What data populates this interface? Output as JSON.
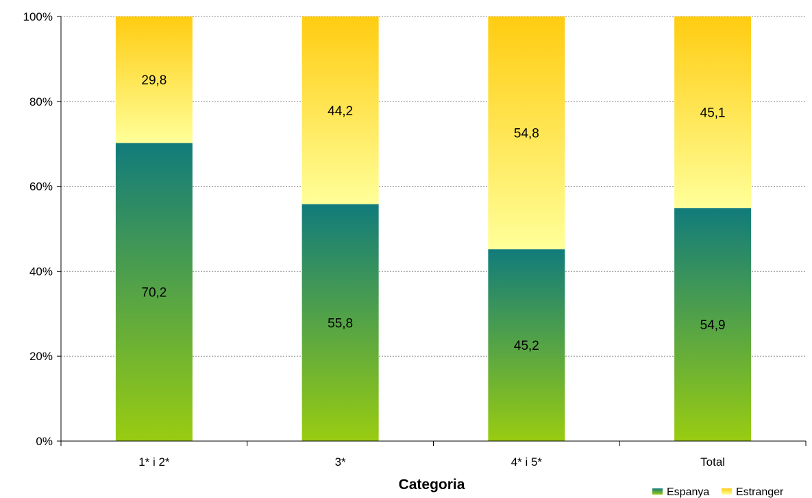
{
  "chart_data": {
    "type": "bar",
    "stacked": true,
    "percent_stacked": true,
    "categories": [
      "1* i 2*",
      "3*",
      "4* i 5*",
      "Total"
    ],
    "series": [
      {
        "name": "Espanya",
        "values": [
          70.2,
          55.8,
          45.2,
          54.9
        ],
        "labels": [
          "70,2",
          "55,8",
          "45,2",
          "54,9"
        ]
      },
      {
        "name": "Estranger",
        "values": [
          29.8,
          44.2,
          54.8,
          45.1
        ],
        "labels": [
          "29,8",
          "44,2",
          "54,8",
          "45,1"
        ]
      }
    ],
    "title": "",
    "xlabel": "Categoria",
    "ylabel": "",
    "ylim": [
      0,
      100
    ],
    "yticks": [
      "0%",
      "20%",
      "40%",
      "60%",
      "80%",
      "100%"
    ],
    "grid": true,
    "legend_position": "bottom-right",
    "colors": {
      "Espanya": {
        "top": "#117b7b",
        "bottom": "#99cc11"
      },
      "Estranger": {
        "top": "#ffcc11",
        "bottom": "#ffff99"
      }
    }
  }
}
